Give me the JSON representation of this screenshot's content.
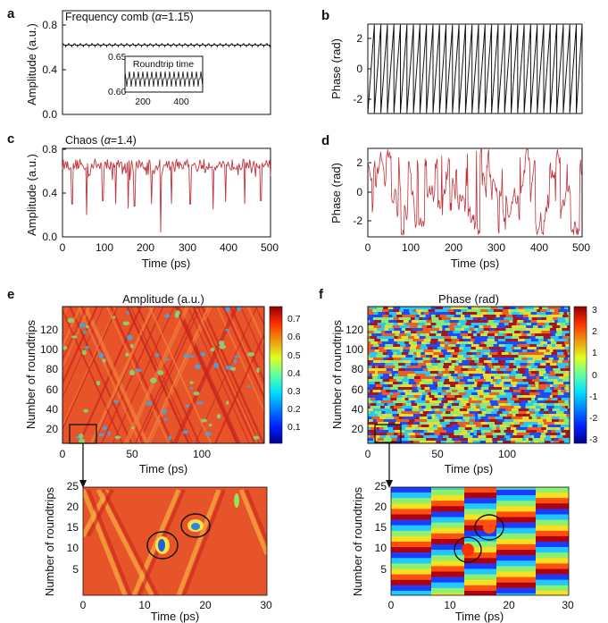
{
  "panel_letters": [
    "a",
    "b",
    "c",
    "d",
    "e",
    "f"
  ],
  "colors": {
    "comb": "#111111",
    "chaos": "#c0343b",
    "axis": "#111111",
    "field_bg": "#e8542a"
  },
  "chart_data": [
    {
      "id": "a",
      "type": "line",
      "title_prefix": "Frequency comb (",
      "title_symbol": "α",
      "title_suffix": "=1.15)",
      "xlabel": "",
      "ylabel": "Amplitude (a.u.)",
      "xlim": [
        0,
        500
      ],
      "ylim": [
        0,
        0.8
      ],
      "yticks": [
        "0.0",
        "0.4",
        "0.8"
      ],
      "series": [
        {
          "level": 0.62,
          "ripple": 0.012,
          "period": 14
        }
      ],
      "inset": {
        "title": "Roundtrip time",
        "ylim": [
          0.6,
          0.65
        ],
        "yticks": [
          "0.65",
          "0.60"
        ],
        "xticks": [
          "200",
          "400"
        ],
        "xrange": [
          100,
          450
        ]
      }
    },
    {
      "id": "b",
      "type": "line",
      "xlabel": "",
      "ylabel": "Phase (rad)",
      "xlim": [
        0,
        500
      ],
      "ylim": [
        -3.14,
        3.14
      ],
      "yticks": [
        "2",
        "0",
        "-2"
      ],
      "sawtooth_period": 15.2
    },
    {
      "id": "c",
      "type": "line",
      "title_prefix": "Chaos (",
      "title_symbol": "α",
      "title_suffix": "=1.4)",
      "xlabel": "Time (ps)",
      "ylabel": "Amplitude (a.u.)",
      "xlim": [
        0,
        500
      ],
      "ylim": [
        0,
        0.8
      ],
      "xticks": [
        "0",
        "100",
        "200",
        "300",
        "400",
        "500"
      ],
      "yticks": [
        "0.0",
        "0.4",
        "0.8"
      ],
      "series": [
        {
          "mean": 0.66,
          "spread": 0.05,
          "dips": [
            [
              23,
              0.3
            ],
            [
              58,
              0.2
            ],
            [
              97,
              0.33
            ],
            [
              128,
              0.3
            ],
            [
              158,
              0.26
            ],
            [
              173,
              0.28
            ],
            [
              214,
              0.3
            ],
            [
              236,
              0.04
            ],
            [
              262,
              0.3
            ],
            [
              307,
              0.3
            ],
            [
              362,
              0.25
            ],
            [
              392,
              0.32
            ],
            [
              438,
              0.3
            ],
            [
              477,
              0.33
            ]
          ]
        }
      ]
    },
    {
      "id": "d",
      "type": "line",
      "xlabel": "Time (ps)",
      "ylabel": "Phase (rad)",
      "xlim": [
        0,
        500
      ],
      "ylim": [
        -3.14,
        3.14
      ],
      "xticks": [
        "0",
        "100",
        "200",
        "300",
        "400",
        "500"
      ],
      "yticks": [
        "2",
        "0",
        "-2"
      ]
    },
    {
      "id": "e",
      "type": "heatmap",
      "title": "Amplitude (a.u.)",
      "xlabel": "Time (ps)",
      "ylabel": "Number of roundtrips",
      "xlim": [
        0,
        145
      ],
      "ylim": [
        0,
        140
      ],
      "xticks": [
        "0",
        "50",
        "100"
      ],
      "yticks": [
        "20",
        "40",
        "60",
        "80",
        "100",
        "120"
      ],
      "colorbar": {
        "range": [
          0,
          0.75
        ],
        "ticks": [
          "0.7",
          "0.6",
          "0.5",
          "0.4",
          "0.3",
          "0.2",
          "0.1"
        ]
      },
      "zoom": {
        "xlim": [
          0,
          30
        ],
        "ylim": [
          0,
          26
        ],
        "xticks": [
          "0",
          "10",
          "20",
          "30"
        ],
        "yticks": [
          "5",
          "10",
          "15",
          "20",
          "25"
        ],
        "xlabel": "Time (ps)",
        "ylabel": "Number of roundtrips"
      }
    },
    {
      "id": "f",
      "type": "heatmap",
      "title": "Phase (rad)",
      "xlabel": "Time (ps)",
      "ylabel": "Number of roundtrips",
      "xlim": [
        0,
        145
      ],
      "ylim": [
        0,
        140
      ],
      "xticks": [
        "0",
        "50",
        "100"
      ],
      "yticks": [
        "20",
        "40",
        "60",
        "80",
        "100",
        "120"
      ],
      "colorbar": {
        "range": [
          -3,
          3
        ],
        "ticks": [
          "3",
          "2",
          "1",
          "0",
          "-1",
          "-2",
          "-3"
        ]
      },
      "zoom": {
        "xlim": [
          0,
          30
        ],
        "ylim": [
          0,
          26
        ],
        "xticks": [
          "0",
          "10",
          "20",
          "30"
        ],
        "yticks": [
          "5",
          "10",
          "15",
          "20",
          "25"
        ],
        "xlabel": "Time (ps)",
        "ylabel": "Number of roundtrips"
      }
    }
  ]
}
